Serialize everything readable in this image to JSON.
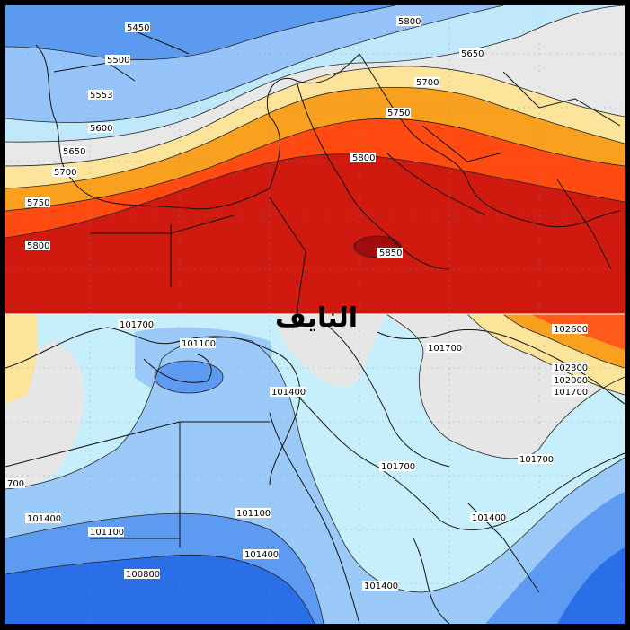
{
  "colors": {
    "h_blue_dark": "#2e6fe0",
    "h_blue_mid": "#5c9af0",
    "h_blue_light": "#96c4fa",
    "h_cyan": "#bfe8fa",
    "h_grey": "#e8e8e8",
    "h_yellow": "#fce49a",
    "h_orange": "#f9a11f",
    "h_redorange": "#ff4a12",
    "h_red": "#d01a10",
    "h_darkred": "#a00c0c",
    "p_blue_dark": "#2a6ee8",
    "p_blue_mid": "#5d9bf2",
    "p_blue_light": "#9ccaf8",
    "p_cyan": "#c6eefb",
    "p_grey": "#e6e6e6",
    "p_yellow": "#fce49a",
    "p_orange": "#f9a11f",
    "p_red": "#ff5a1a"
  },
  "top_panel": {
    "contour_labels": [
      "5450",
      "5500",
      "5553",
      "5600",
      "5650",
      "5700",
      "5750",
      "5800",
      "5850",
      "5800",
      "5650",
      "5700",
      "5750",
      "5800"
    ]
  },
  "bottom_panel": {
    "contour_labels": [
      "101700",
      "101100",
      "101400",
      "101700",
      "102600",
      "102300",
      "102000",
      "101700",
      "101700",
      "101700",
      "101400",
      "101100",
      "101400",
      "101100",
      "100800",
      "101400",
      "101400",
      "700"
    ]
  },
  "watermark": {
    "text": "النايف"
  }
}
